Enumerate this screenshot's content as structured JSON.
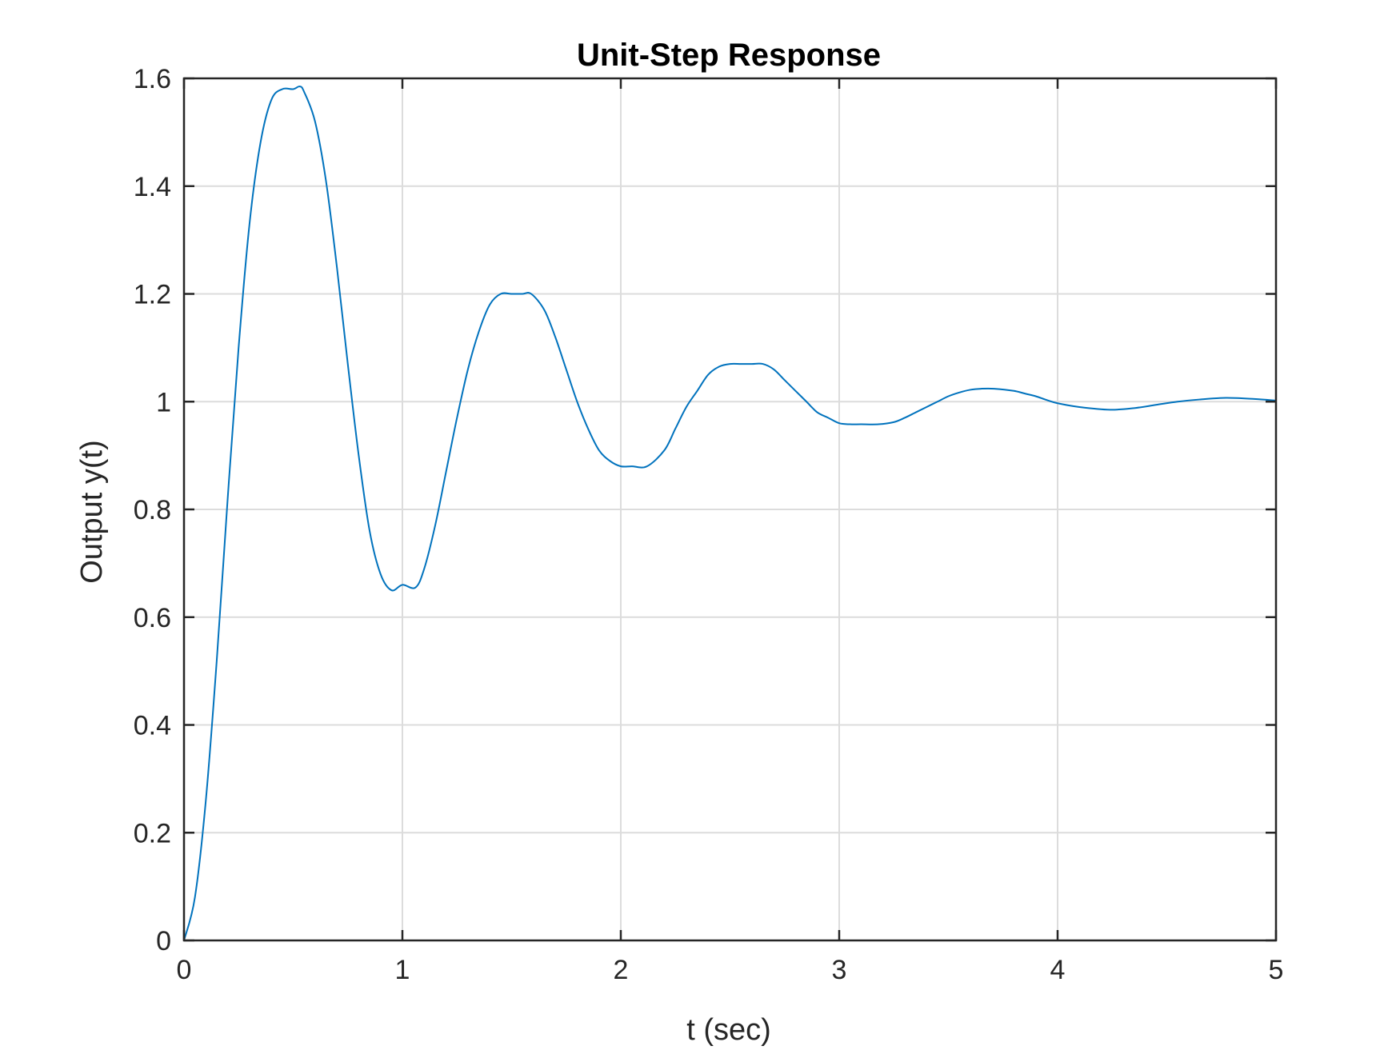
{
  "chart_data": {
    "type": "line",
    "title": "Unit-Step Response",
    "xlabel": "t (sec)",
    "ylabel": "Output y(t)",
    "xlim": [
      0,
      5
    ],
    "ylim": [
      0,
      1.6
    ],
    "xticks": [
      0,
      1,
      2,
      3,
      4,
      5
    ],
    "xtick_labels": [
      "0",
      "1",
      "2",
      "3",
      "4",
      "5"
    ],
    "yticks": [
      0,
      0.2,
      0.4,
      0.6,
      0.8,
      1.0,
      1.2,
      1.4,
      1.6
    ],
    "ytick_labels": [
      "0",
      "0.2",
      "0.4",
      "0.6",
      "0.8",
      "1",
      "1.2",
      "1.4",
      "1.6"
    ],
    "grid": true,
    "series": [
      {
        "color": "#0072BD",
        "x": [
          0,
          0.05,
          0.1,
          0.15,
          0.2,
          0.25,
          0.3,
          0.35,
          0.4,
          0.45,
          0.5,
          0.53,
          0.55,
          0.6,
          0.65,
          0.7,
          0.75,
          0.8,
          0.85,
          0.9,
          0.95,
          1.0,
          1.06,
          1.1,
          1.15,
          1.2,
          1.25,
          1.3,
          1.35,
          1.4,
          1.45,
          1.5,
          1.55,
          1.59,
          1.65,
          1.7,
          1.75,
          1.8,
          1.85,
          1.9,
          1.95,
          2.0,
          2.05,
          2.12,
          2.2,
          2.25,
          2.3,
          2.35,
          2.4,
          2.45,
          2.5,
          2.55,
          2.6,
          2.65,
          2.7,
          2.75,
          2.8,
          2.85,
          2.9,
          2.95,
          3.0,
          3.05,
          3.1,
          3.18,
          3.25,
          3.3,
          3.35,
          3.4,
          3.45,
          3.5,
          3.55,
          3.6,
          3.65,
          3.71,
          3.8,
          3.85,
          3.9,
          3.95,
          4.0,
          4.1,
          4.24,
          4.35,
          4.45,
          4.55,
          4.65,
          4.77,
          4.9,
          5.0
        ],
        "y": [
          0,
          0.08,
          0.26,
          0.52,
          0.82,
          1.1,
          1.33,
          1.48,
          1.56,
          1.58,
          1.58,
          1.585,
          1.575,
          1.52,
          1.41,
          1.25,
          1.07,
          0.9,
          0.76,
          0.68,
          0.65,
          0.66,
          0.655,
          0.69,
          0.77,
          0.87,
          0.97,
          1.06,
          1.13,
          1.18,
          1.2,
          1.2,
          1.2,
          1.2,
          1.17,
          1.12,
          1.06,
          1.0,
          0.95,
          0.91,
          0.89,
          0.88,
          0.88,
          0.88,
          0.91,
          0.95,
          0.99,
          1.02,
          1.05,
          1.065,
          1.07,
          1.07,
          1.07,
          1.07,
          1.06,
          1.04,
          1.02,
          1.0,
          0.98,
          0.97,
          0.96,
          0.958,
          0.958,
          0.958,
          0.962,
          0.97,
          0.98,
          0.99,
          1.0,
          1.01,
          1.017,
          1.022,
          1.024,
          1.024,
          1.02,
          1.015,
          1.01,
          1.003,
          0.997,
          0.99,
          0.985,
          0.988,
          0.994,
          1.0,
          1.004,
          1.007,
          1.005,
          1.002
        ]
      }
    ]
  }
}
